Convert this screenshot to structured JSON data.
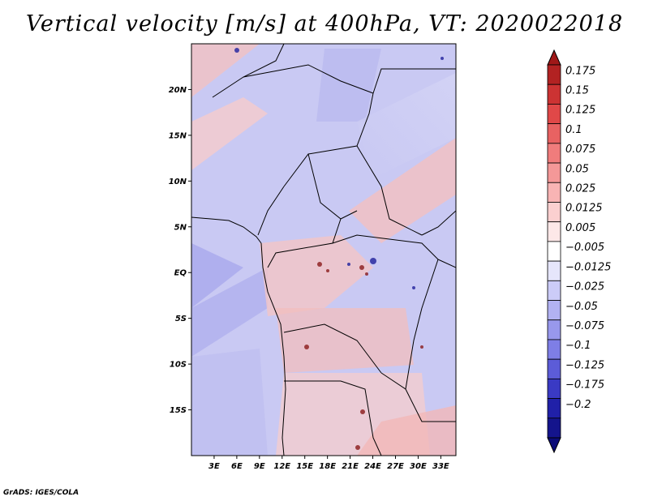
{
  "title": "Vertical velocity [m/s] at 400hPa, VT: 2020022018",
  "footer": "GrADS: IGES/COLA",
  "map": {
    "lon_range": [
      0,
      35
    ],
    "lat_range": [
      -20,
      25
    ],
    "lat_ticks": [
      {
        "value": 20,
        "label": "20N"
      },
      {
        "value": 15,
        "label": "15N"
      },
      {
        "value": 10,
        "label": "10N"
      },
      {
        "value": 5,
        "label": "5N"
      },
      {
        "value": 0,
        "label": "EQ"
      },
      {
        "value": -5,
        "label": "5S"
      },
      {
        "value": -10,
        "label": "10S"
      },
      {
        "value": -15,
        "label": "15S"
      }
    ],
    "lon_ticks": [
      {
        "value": 3,
        "label": "3E"
      },
      {
        "value": 6,
        "label": "6E"
      },
      {
        "value": 9,
        "label": "9E"
      },
      {
        "value": 12,
        "label": "12E"
      },
      {
        "value": 15,
        "label": "15E"
      },
      {
        "value": 18,
        "label": "18E"
      },
      {
        "value": 21,
        "label": "21E"
      },
      {
        "value": 24,
        "label": "24E"
      },
      {
        "value": 27,
        "label": "27E"
      },
      {
        "value": 30,
        "label": "30E"
      },
      {
        "value": 33,
        "label": "33E"
      }
    ]
  },
  "colorbar": {
    "levels": [
      "0.175",
      "0.15",
      "0.125",
      "0.1",
      "0.075",
      "0.05",
      "0.025",
      "0.0125",
      "0.005",
      "−0.005",
      "−0.0125",
      "−0.025",
      "−0.05",
      "−0.075",
      "−0.1",
      "−0.125",
      "−0.175",
      "−0.2"
    ],
    "colors": [
      "#b22222",
      "#cc3333",
      "#e04848",
      "#e86262",
      "#f07c7c",
      "#f49898",
      "#f8b4b4",
      "#fbd0d0",
      "#fde8e8",
      "#ffffff",
      "#e6e6fb",
      "#ccccf8",
      "#b2b2f2",
      "#9898ec",
      "#7e7ee6",
      "#5c5cd8",
      "#3a3ac4",
      "#2020a8",
      "#14148c"
    ],
    "top_color": "#a01818",
    "bottom_color": "#0c0c78"
  }
}
